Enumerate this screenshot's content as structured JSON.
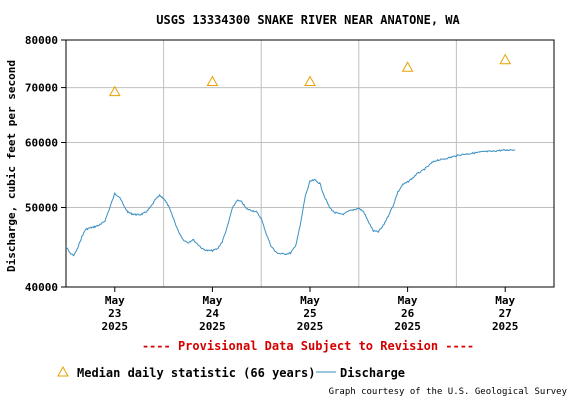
{
  "chart_data": {
    "type": "line",
    "title": "USGS 13334300 SNAKE RIVER NEAR ANATONE, WA",
    "ylabel": "Discharge, cubic feet per second",
    "xlabel": "",
    "y_scale": "log",
    "ylim": [
      40000,
      80000
    ],
    "y_ticks": [
      40000,
      50000,
      60000,
      70000,
      80000
    ],
    "y_tick_labels": [
      "40000",
      "50000",
      "60000",
      "70000",
      "80000"
    ],
    "xlim": [
      0,
      5
    ],
    "x_ticks": [
      {
        "x": 0.5,
        "line1": "May",
        "line2": "23",
        "line3": "2025"
      },
      {
        "x": 1.5,
        "line1": "May",
        "line2": "24",
        "line3": "2025"
      },
      {
        "x": 2.5,
        "line1": "May",
        "line2": "25",
        "line3": "2025"
      },
      {
        "x": 3.5,
        "line1": "May",
        "line2": "26",
        "line3": "2025"
      },
      {
        "x": 4.5,
        "line1": "May",
        "line2": "27",
        "line3": "2025"
      }
    ],
    "day_boundaries": [
      1,
      2,
      3,
      4
    ],
    "grid": true,
    "legend_position": "bottom",
    "provisional_note": "---- Provisional Data Subject to Revision ----",
    "credit": "Graph courtesy of the U.S. Geological Survey",
    "colors": {
      "discharge": "#3a8fc2",
      "median": "#e8a200",
      "provisional": "#d40000",
      "grid": "#c0c0c0"
    },
    "series": [
      {
        "name": "Median daily statistic (66 years)",
        "kind": "marker",
        "marker": "triangle",
        "x": [
          0.5,
          1.5,
          2.5,
          3.5,
          4.5
        ],
        "y": [
          69200,
          71200,
          71200,
          74100,
          75700
        ]
      },
      {
        "name": "Discharge",
        "kind": "line",
        "x": [
          0.0,
          0.04,
          0.08,
          0.12,
          0.16,
          0.2,
          0.24,
          0.28,
          0.32,
          0.36,
          0.4,
          0.45,
          0.5,
          0.55,
          0.6,
          0.64,
          0.68,
          0.72,
          0.76,
          0.8,
          0.84,
          0.88,
          0.92,
          0.96,
          1.0,
          1.05,
          1.1,
          1.15,
          1.2,
          1.25,
          1.3,
          1.35,
          1.4,
          1.45,
          1.5,
          1.55,
          1.6,
          1.65,
          1.7,
          1.75,
          1.8,
          1.85,
          1.9,
          1.95,
          2.0,
          2.05,
          2.1,
          2.15,
          2.2,
          2.25,
          2.3,
          2.35,
          2.4,
          2.45,
          2.5,
          2.55,
          2.6,
          2.65,
          2.7,
          2.75,
          2.8,
          2.85,
          2.9,
          2.95,
          3.0,
          3.05,
          3.1,
          3.15,
          3.2,
          3.25,
          3.3,
          3.35,
          3.4,
          3.45,
          3.5,
          3.55,
          3.6,
          3.65,
          3.7,
          3.75,
          3.8,
          3.85,
          3.9,
          3.95,
          4.0,
          4.05,
          4.1,
          4.15,
          4.2,
          4.25,
          4.3,
          4.35,
          4.4,
          4.45,
          4.5,
          4.55,
          4.6
        ],
        "y": [
          44800,
          44000,
          43700,
          44600,
          46000,
          47000,
          47200,
          47300,
          47500,
          47700,
          48200,
          50000,
          52000,
          51500,
          50000,
          49300,
          49100,
          49000,
          49000,
          49200,
          49600,
          50300,
          51200,
          51700,
          51300,
          50200,
          48500,
          46800,
          45700,
          45300,
          45700,
          45100,
          44500,
          44300,
          44300,
          44500,
          45400,
          47200,
          49700,
          51000,
          50800,
          49800,
          49600,
          49400,
          48500,
          46500,
          44900,
          44100,
          43900,
          43900,
          44000,
          44800,
          47500,
          51500,
          53800,
          54000,
          53500,
          51500,
          50000,
          49300,
          49100,
          49100,
          49500,
          49700,
          49900,
          49400,
          48000,
          46800,
          46700,
          47500,
          48800,
          50200,
          52200,
          53300,
          53700,
          54300,
          55000,
          55400,
          56000,
          56700,
          57100,
          57200,
          57400,
          57600,
          57800,
          58000,
          58100,
          58200,
          58300,
          58400,
          58500,
          58500,
          58600,
          58700,
          58700,
          58800,
          58800
        ]
      }
    ]
  }
}
